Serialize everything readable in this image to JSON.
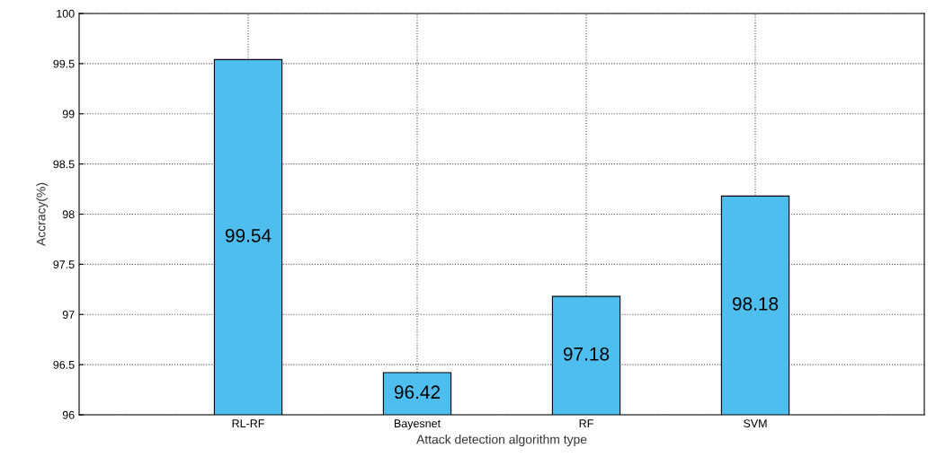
{
  "chart_data": {
    "type": "bar",
    "xlabel": "Attack detection algorithm type",
    "ylabel": "Accracy(%)",
    "categories": [
      "RL-RF",
      "Bayesnet",
      "RF",
      "SVM"
    ],
    "values": [
      99.54,
      96.42,
      97.18,
      98.18
    ],
    "color": "#4dbeee",
    "ylim": [
      96,
      100
    ],
    "yticks": [
      96,
      96.5,
      97,
      97.5,
      98,
      98.5,
      99,
      99.5,
      100
    ],
    "grid": true,
    "data_labels": true
  }
}
